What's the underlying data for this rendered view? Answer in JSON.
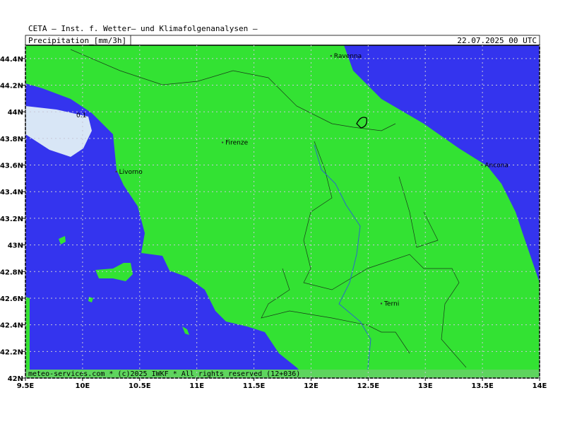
{
  "header": {
    "title": "CETA — Inst. f. Wetter— und Klimafolgenanalysen —",
    "variable": "Precipitation_[mm/3h]",
    "valid_time": "22.07.2025 00 UTC"
  },
  "map": {
    "lon_range": [
      9.5,
      14
    ],
    "lat_range": [
      42,
      44.5
    ],
    "lon_ticks": [
      {
        "value": 9.5,
        "label": "9.5E"
      },
      {
        "value": 10,
        "label": "10E"
      },
      {
        "value": 10.5,
        "label": "10.5E"
      },
      {
        "value": 11,
        "label": "11E"
      },
      {
        "value": 11.5,
        "label": "11.5E"
      },
      {
        "value": 12,
        "label": "12E"
      },
      {
        "value": 12.5,
        "label": "12.5E"
      },
      {
        "value": 13,
        "label": "13E"
      },
      {
        "value": 13.5,
        "label": "13.5E"
      },
      {
        "value": 14,
        "label": "14E"
      }
    ],
    "lat_ticks": [
      {
        "value": 42,
        "label": "42N"
      },
      {
        "value": 42.2,
        "label": "42.2N"
      },
      {
        "value": 42.4,
        "label": "42.4N"
      },
      {
        "value": 42.6,
        "label": "42.6N"
      },
      {
        "value": 42.8,
        "label": "42.8N"
      },
      {
        "value": 43,
        "label": "43N"
      },
      {
        "value": 43.2,
        "label": "43.2N"
      },
      {
        "value": 43.4,
        "label": "43.4N"
      },
      {
        "value": 43.6,
        "label": "43.6N"
      },
      {
        "value": 43.8,
        "label": "43.8N"
      },
      {
        "value": 44,
        "label": "44N"
      },
      {
        "value": 44.2,
        "label": "44.2N"
      },
      {
        "value": 44.4,
        "label": "44.4N"
      }
    ],
    "cities": [
      {
        "name": "Ravenna",
        "lon": 12.2,
        "lat": 44.42
      },
      {
        "name": "Firenze",
        "lon": 11.25,
        "lat": 43.77
      },
      {
        "name": "Livorno",
        "lon": 10.32,
        "lat": 43.55
      },
      {
        "name": "Ancona",
        "lon": 13.52,
        "lat": 43.6
      },
      {
        "name": "Terni",
        "lon": 12.64,
        "lat": 42.56
      }
    ],
    "contour_label": "0.1"
  },
  "footer": "meteo-services.com * (c)2025 IWKF * All rights reserved (12+036)"
}
